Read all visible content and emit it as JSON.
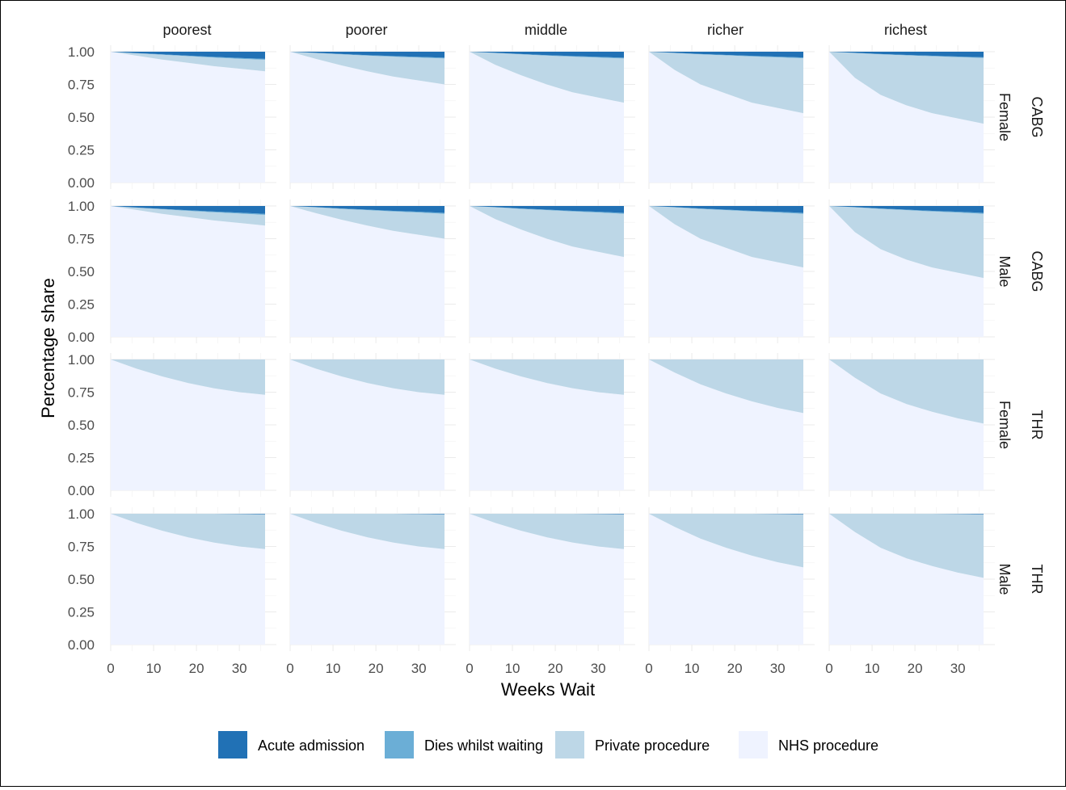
{
  "chart_data": {
    "type": "area",
    "stacked": true,
    "facet_columns": [
      "poorest",
      "poorer",
      "middle",
      "richer",
      "richest"
    ],
    "facet_rows": [
      {
        "procedure": "CABG",
        "sex": "Female"
      },
      {
        "procedure": "CABG",
        "sex": "Male"
      },
      {
        "procedure": "THR",
        "sex": "Female"
      },
      {
        "procedure": "THR",
        "sex": "Male"
      }
    ],
    "xlabel": "Weeks Wait",
    "ylabel": "Percentage share",
    "xlim": [
      0,
      36
    ],
    "ylim": [
      0,
      1
    ],
    "x_ticks": [
      0,
      10,
      20,
      30
    ],
    "y_ticks": [
      0,
      0.25,
      0.5,
      0.75,
      1.0
    ],
    "y_tick_labels": [
      "0.00",
      "0.25",
      "0.50",
      "0.75",
      "1.00"
    ],
    "legend_position": "bottom",
    "legend": [
      {
        "name": "Acute admission",
        "color": "#2171b5"
      },
      {
        "name": "Dies whilst waiting",
        "color": "#6baed6"
      },
      {
        "name": "Private procedure",
        "color": "#bdd7e7"
      },
      {
        "name": "NHS procedure",
        "color": "#eff3ff"
      }
    ],
    "x": [
      0,
      6,
      12,
      18,
      24,
      30,
      36
    ],
    "panels": [
      [
        {
          "nhs": [
            1,
            0.97,
            0.94,
            0.915,
            0.89,
            0.87,
            0.85
          ],
          "top": [
            1,
            0.988,
            0.977,
            0.966,
            0.955,
            0.946,
            0.938
          ]
        },
        {
          "nhs": [
            1,
            0.945,
            0.895,
            0.85,
            0.81,
            0.78,
            0.75
          ],
          "top": [
            1,
            0.99,
            0.98,
            0.97,
            0.962,
            0.955,
            0.948
          ]
        },
        {
          "nhs": [
            1,
            0.9,
            0.82,
            0.75,
            0.69,
            0.65,
            0.61
          ],
          "top": [
            1,
            0.99,
            0.98,
            0.97,
            0.962,
            0.955,
            0.948
          ]
        },
        {
          "nhs": [
            1,
            0.86,
            0.75,
            0.68,
            0.61,
            0.57,
            0.53
          ],
          "top": [
            1,
            0.99,
            0.98,
            0.972,
            0.964,
            0.957,
            0.95
          ]
        },
        {
          "nhs": [
            1,
            0.8,
            0.67,
            0.59,
            0.53,
            0.49,
            0.45
          ],
          "top": [
            1,
            0.99,
            0.98,
            0.972,
            0.965,
            0.958,
            0.952
          ]
        }
      ],
      [
        {
          "nhs": [
            1,
            0.97,
            0.94,
            0.915,
            0.89,
            0.87,
            0.85
          ],
          "top": [
            1,
            0.987,
            0.975,
            0.963,
            0.952,
            0.942,
            0.932
          ]
        },
        {
          "nhs": [
            1,
            0.945,
            0.895,
            0.85,
            0.81,
            0.78,
            0.75
          ],
          "top": [
            1,
            0.99,
            0.978,
            0.968,
            0.958,
            0.95,
            0.94
          ]
        },
        {
          "nhs": [
            1,
            0.9,
            0.82,
            0.75,
            0.69,
            0.65,
            0.61
          ],
          "top": [
            1,
            0.99,
            0.978,
            0.968,
            0.958,
            0.95,
            0.94
          ]
        },
        {
          "nhs": [
            1,
            0.86,
            0.75,
            0.68,
            0.61,
            0.57,
            0.53
          ],
          "top": [
            1,
            0.99,
            0.978,
            0.968,
            0.958,
            0.95,
            0.94
          ]
        },
        {
          "nhs": [
            1,
            0.8,
            0.67,
            0.59,
            0.53,
            0.49,
            0.45
          ],
          "top": [
            1,
            0.99,
            0.978,
            0.968,
            0.958,
            0.95,
            0.94
          ]
        }
      ],
      [
        {
          "nhs": [
            1,
            0.93,
            0.87,
            0.82,
            0.78,
            0.75,
            0.73
          ],
          "top": [
            1,
            1,
            1,
            1,
            1,
            1,
            1
          ]
        },
        {
          "nhs": [
            1,
            0.93,
            0.87,
            0.82,
            0.78,
            0.75,
            0.73
          ],
          "top": [
            1,
            1,
            1,
            1,
            1,
            1,
            1
          ]
        },
        {
          "nhs": [
            1,
            0.93,
            0.87,
            0.82,
            0.78,
            0.75,
            0.73
          ],
          "top": [
            1,
            1,
            1,
            1,
            1,
            1,
            1
          ]
        },
        {
          "nhs": [
            1,
            0.9,
            0.81,
            0.74,
            0.68,
            0.63,
            0.59
          ],
          "top": [
            1,
            1,
            1,
            1,
            1,
            1,
            1
          ]
        },
        {
          "nhs": [
            1,
            0.86,
            0.74,
            0.66,
            0.6,
            0.55,
            0.51
          ],
          "top": [
            1,
            1,
            1,
            1,
            1,
            1,
            1
          ]
        }
      ],
      [
        {
          "nhs": [
            1,
            0.93,
            0.87,
            0.82,
            0.78,
            0.75,
            0.73
          ],
          "top": [
            1,
            1,
            1,
            1,
            1,
            0.998,
            0.996
          ]
        },
        {
          "nhs": [
            1,
            0.93,
            0.87,
            0.82,
            0.78,
            0.75,
            0.73
          ],
          "top": [
            1,
            1,
            1,
            1,
            1,
            0.998,
            0.996
          ]
        },
        {
          "nhs": [
            1,
            0.93,
            0.87,
            0.82,
            0.78,
            0.75,
            0.73
          ],
          "top": [
            1,
            1,
            1,
            1,
            1,
            0.998,
            0.996
          ]
        },
        {
          "nhs": [
            1,
            0.9,
            0.81,
            0.74,
            0.68,
            0.63,
            0.59
          ],
          "top": [
            1,
            1,
            1,
            1,
            1,
            0.998,
            0.996
          ]
        },
        {
          "nhs": [
            1,
            0.86,
            0.74,
            0.66,
            0.6,
            0.55,
            0.51
          ],
          "top": [
            1,
            1,
            1,
            1,
            1,
            0.998,
            0.996
          ]
        }
      ]
    ]
  }
}
